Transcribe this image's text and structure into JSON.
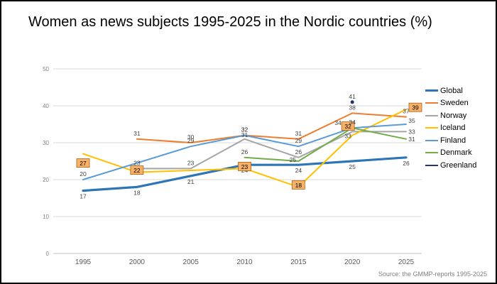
{
  "title": "Women as news subjects 1995-2025 in the Nordic countries (%)",
  "source": "Source: the GMMP-reports 1995-2025",
  "chart_data": {
    "type": "line",
    "title": "Women as news subjects 1995-2025 in the Nordic countries (%)",
    "x_categories": [
      "1995",
      "2000",
      "2005",
      "2010",
      "2015",
      "2020",
      "2025"
    ],
    "y_axis": {
      "min": 0,
      "max": 50,
      "step": 10,
      "tick_labels": [
        "0",
        "10",
        "20",
        "30",
        "40",
        "50"
      ]
    },
    "grid": "horizontal",
    "legend_position": "right",
    "label_box_style": {
      "fill": "#F6B26B",
      "border": "#B45F06"
    },
    "series": [
      {
        "name": "Global",
        "color": "#2E75B6",
        "width": 3.2,
        "label_side": "below",
        "points": {
          "1995": 17,
          "2000": 18,
          "2005": 21,
          "2010": 24,
          "2015": 24,
          "2020": 25,
          "2025": 26
        }
      },
      {
        "name": "Sweden",
        "color": "#ED7D31",
        "width": 2,
        "label_side": "above",
        "points": {
          "2000": 31,
          "2005": 30,
          "2010": 32,
          "2015": 31,
          "2020": 38,
          "2025": 37
        }
      },
      {
        "name": "Norway",
        "color": "#A5A5A5",
        "width": 2,
        "label_side": "above",
        "points": {
          "2000": 23,
          "2005": 23,
          "2010": 31,
          "2015": 26,
          "2020": 33,
          "2025": 33
        },
        "label_offsets": {
          "2010": [
            0,
            -3
          ],
          "2020": [
            -6,
            9
          ],
          "2025": [
            8,
            3
          ]
        }
      },
      {
        "name": "Iceland",
        "color": "#FFC000",
        "width": 2,
        "label_side": "above",
        "boxed_labels": true,
        "points": {
          "1995": 27,
          "2000": 22,
          "2010": 23,
          "2015": 18,
          "2020": 32,
          "2025": 39
        },
        "label_offsets": {
          "1995": [
            0,
            13
          ],
          "2000": [
            0,
            -3
          ],
          "2010": [
            0,
            -3
          ],
          "2015": [
            0,
            -3
          ],
          "2020": [
            -6,
            -13
          ],
          "2025": [
            13,
            -3
          ]
        }
      },
      {
        "name": "Finland",
        "color": "#5B9BD5",
        "width": 2,
        "label_side": "above",
        "points": {
          "1995": 20,
          "2005": 29,
          "2010": 32,
          "2015": 29,
          "2020": 34,
          "2025": 35
        },
        "label_offsets": {
          "2025": [
            8,
            -2
          ]
        }
      },
      {
        "name": "Denmark",
        "color": "#70AD47",
        "width": 2,
        "label_side": "above",
        "points": {
          "2010": 26,
          "2015": 25,
          "2020": 34,
          "2025": 31
        },
        "label_offsets": {
          "2015": [
            -8,
            1
          ],
          "2020": [
            -20,
            -4
          ],
          "2025": [
            8,
            3
          ]
        }
      },
      {
        "name": "Greenland",
        "color": "#1F3864",
        "width": 2,
        "marker": true,
        "label_side": "above",
        "points": {
          "2020": 41
        }
      }
    ]
  }
}
